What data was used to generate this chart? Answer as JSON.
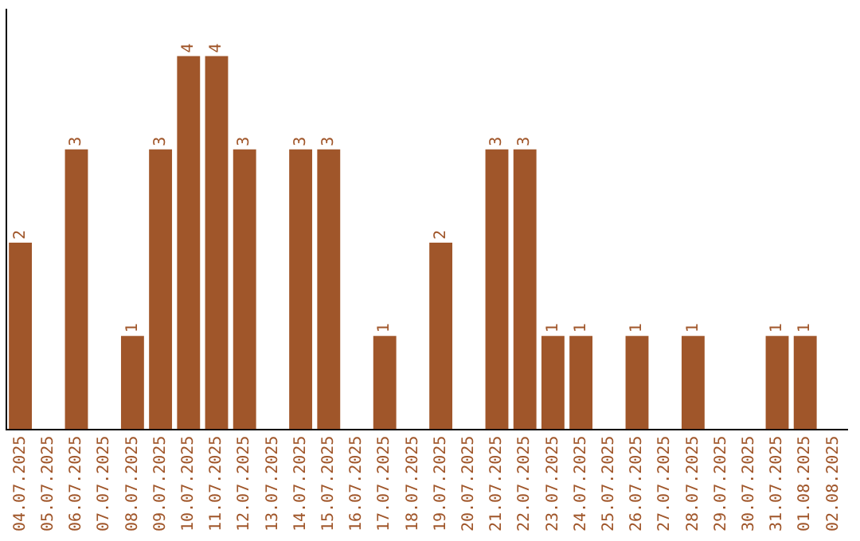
{
  "chart_data": {
    "type": "bar",
    "categories": [
      "04.07.2025",
      "05.07.2025",
      "06.07.2025",
      "07.07.2025",
      "08.07.2025",
      "09.07.2025",
      "10.07.2025",
      "11.07.2025",
      "12.07.2025",
      "13.07.2025",
      "14.07.2025",
      "15.07.2025",
      "16.07.2025",
      "17.07.2025",
      "18.07.2025",
      "19.07.2025",
      "20.07.2025",
      "21.07.2025",
      "22.07.2025",
      "23.07.2025",
      "24.07.2025",
      "25.07.2025",
      "26.07.2025",
      "27.07.2025",
      "28.07.2025",
      "29.07.2025",
      "30.07.2025",
      "31.07.2025",
      "01.08.2025",
      "02.08.2025"
    ],
    "values": [
      2,
      0,
      3,
      0,
      1,
      3,
      4,
      4,
      3,
      0,
      3,
      3,
      0,
      1,
      0,
      2,
      0,
      3,
      3,
      1,
      1,
      0,
      1,
      0,
      1,
      0,
      0,
      1,
      1,
      0
    ],
    "value_labels": [
      "2",
      null,
      "3",
      null,
      "1",
      "3",
      "4",
      "4",
      "3",
      null,
      "3",
      "3",
      null,
      "1",
      null,
      "2",
      null,
      "3",
      "3",
      "1",
      "1",
      null,
      "1",
      null,
      "1",
      null,
      null,
      "1",
      "1",
      null
    ],
    "color": "#a0562a",
    "grid": false,
    "legend": false,
    "tick_labels": "x"
  }
}
